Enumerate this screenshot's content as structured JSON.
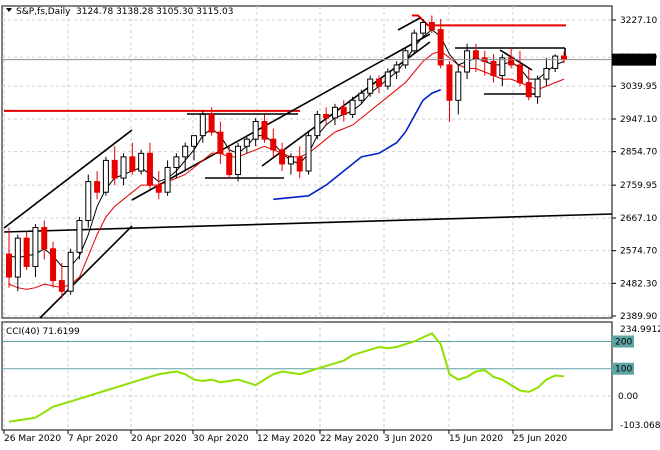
{
  "header": {
    "symbol_line": "S&P,fs,Daily",
    "ohlc": "3124.78 3138.28 3105.30 3115.03"
  },
  "price_badge": "3115.03",
  "indicator": {
    "label": "CCI(40) 71.6199",
    "scale_top": "234.9912",
    "scale_bottom": "-103.0686",
    "level_labels": [
      "200",
      "100",
      "0.00"
    ]
  },
  "colors": {
    "bull": "#000000",
    "bear": "#e60000",
    "ma_fast": "#000000",
    "ma_slow": "#e60000",
    "ma_blue": "#0022cc",
    "cci": "#8fe000",
    "level_line": "#5fa4a4"
  },
  "chart_data": [
    {
      "type": "candlestick",
      "title": "S&P,fs,Daily",
      "y_ticks": [
        "3227.10",
        "3121.90",
        "3039.95",
        "2947.10",
        "2854.70",
        "2759.95",
        "2667.10",
        "2574.70",
        "2482.30",
        "2389.90"
      ],
      "y_tick_values": [
        3227.1,
        3121.9,
        3039.95,
        2947.1,
        2854.7,
        2759.95,
        2667.1,
        2574.7,
        2482.3,
        2389.9
      ],
      "ylim": [
        2389.9,
        3280
      ],
      "x_ticks": [
        "26 Mar 2020",
        "7 Apr 2020",
        "20 Apr 2020",
        "30 Apr 2020",
        "12 May 2020",
        "22 May 2020",
        "3 Jun 2020",
        "15 Jun 2020",
        "25 Jun 2020"
      ],
      "candles": [
        [
          2565,
          2640,
          2470,
          2500
        ],
        [
          2500,
          2620,
          2460,
          2610
        ],
        [
          2610,
          2630,
          2520,
          2530
        ],
        [
          2530,
          2650,
          2500,
          2640
        ],
        [
          2640,
          2660,
          2550,
          2580
        ],
        [
          2580,
          2600,
          2470,
          2490
        ],
        [
          2490,
          2540,
          2440,
          2460
        ],
        [
          2460,
          2580,
          2450,
          2570
        ],
        [
          2570,
          2670,
          2550,
          2660
        ],
        [
          2660,
          2790,
          2640,
          2770
        ],
        [
          2770,
          2800,
          2720,
          2740
        ],
        [
          2740,
          2840,
          2730,
          2830
        ],
        [
          2830,
          2870,
          2760,
          2780
        ],
        [
          2780,
          2850,
          2760,
          2840
        ],
        [
          2840,
          2880,
          2790,
          2800
        ],
        [
          2800,
          2860,
          2790,
          2850
        ],
        [
          2850,
          2880,
          2750,
          2760
        ],
        [
          2760,
          2800,
          2720,
          2740
        ],
        [
          2740,
          2830,
          2730,
          2810
        ],
        [
          2810,
          2850,
          2780,
          2840
        ],
        [
          2840,
          2880,
          2800,
          2870
        ],
        [
          2870,
          2900,
          2830,
          2900
        ],
        [
          2900,
          2970,
          2880,
          2960
        ],
        [
          2960,
          2980,
          2900,
          2910
        ],
        [
          2910,
          2940,
          2820,
          2850
        ],
        [
          2850,
          2870,
          2780,
          2790
        ],
        [
          2790,
          2880,
          2770,
          2870
        ],
        [
          2870,
          2900,
          2850,
          2890
        ],
        [
          2890,
          2950,
          2870,
          2940
        ],
        [
          2940,
          2960,
          2880,
          2890
        ],
        [
          2890,
          2920,
          2840,
          2860
        ],
        [
          2860,
          2880,
          2800,
          2820
        ],
        [
          2820,
          2850,
          2790,
          2840
        ],
        [
          2840,
          2870,
          2780,
          2800
        ],
        [
          2800,
          2910,
          2790,
          2900
        ],
        [
          2900,
          2970,
          2890,
          2960
        ],
        [
          2960,
          2980,
          2930,
          2950
        ],
        [
          2950,
          2990,
          2930,
          2980
        ],
        [
          2980,
          3000,
          2940,
          2960
        ],
        [
          2960,
          3010,
          2950,
          3000
        ],
        [
          3000,
          3030,
          2990,
          3020
        ],
        [
          3020,
          3070,
          3010,
          3060
        ],
        [
          3060,
          3070,
          3020,
          3040
        ],
        [
          3040,
          3090,
          3030,
          3080
        ],
        [
          3080,
          3110,
          3060,
          3100
        ],
        [
          3100,
          3150,
          3090,
          3140
        ],
        [
          3140,
          3200,
          3130,
          3190
        ],
        [
          3190,
          3230,
          3180,
          3220
        ],
        [
          3220,
          3240,
          3190,
          3200
        ],
        [
          3200,
          3230,
          3090,
          3100
        ],
        [
          3100,
          3110,
          2940,
          3000
        ],
        [
          3000,
          3100,
          2960,
          3080
        ],
        [
          3080,
          3160,
          3060,
          3140
        ],
        [
          3140,
          3160,
          3080,
          3120
        ],
        [
          3120,
          3140,
          3070,
          3110
        ],
        [
          3110,
          3130,
          3050,
          3070
        ],
        [
          3070,
          3130,
          3040,
          3120
        ],
        [
          3120,
          3150,
          3090,
          3100
        ],
        [
          3100,
          3140,
          3040,
          3050
        ],
        [
          3050,
          3090,
          3000,
          3010
        ],
        [
          3010,
          3070,
          2990,
          3060
        ],
        [
          3060,
          3120,
          3040,
          3090
        ],
        [
          3090,
          3130,
          3080,
          3125
        ],
        [
          3125,
          3138,
          3105,
          3115
        ]
      ],
      "ma_fast": [
        2560,
        2555,
        2560,
        2565,
        2580,
        2560,
        2530,
        2530,
        2560,
        2620,
        2700,
        2750,
        2780,
        2790,
        2800,
        2810,
        2790,
        2770,
        2780,
        2800,
        2830,
        2860,
        2900,
        2920,
        2900,
        2860,
        2850,
        2870,
        2900,
        2900,
        2880,
        2850,
        2830,
        2820,
        2850,
        2900,
        2930,
        2950,
        2960,
        2970,
        2990,
        3020,
        3040,
        3060,
        3080,
        3110,
        3150,
        3180,
        3200,
        3180,
        3130,
        3100,
        3110,
        3120,
        3110,
        3100,
        3100,
        3110,
        3090,
        3060,
        3060,
        3080,
        3100,
        3110
      ],
      "ma_slow": [
        2480,
        2470,
        2465,
        2470,
        2480,
        2475,
        2470,
        2480,
        2500,
        2560,
        2620,
        2670,
        2700,
        2720,
        2740,
        2760,
        2760,
        2760,
        2770,
        2780,
        2790,
        2810,
        2830,
        2850,
        2850,
        2840,
        2840,
        2850,
        2860,
        2870,
        2860,
        2850,
        2840,
        2840,
        2850,
        2870,
        2890,
        2910,
        2920,
        2930,
        2950,
        2970,
        2990,
        3010,
        3030,
        3050,
        3080,
        3110,
        3130,
        3140,
        3120,
        3100,
        3090,
        3090,
        3080,
        3070,
        3060,
        3060,
        3050,
        3040,
        3030,
        3040,
        3050,
        3060
      ],
      "ma_blue": [
        [
          30,
          2720
        ],
        [
          34,
          2730
        ],
        [
          36,
          2760
        ],
        [
          38,
          2800
        ],
        [
          40,
          2840
        ],
        [
          42,
          2850
        ],
        [
          44,
          2880
        ],
        [
          45,
          2910
        ],
        [
          47,
          3000
        ],
        [
          48,
          3020
        ],
        [
          49,
          3030
        ]
      ],
      "resistance_levels": [
        {
          "value": 2970,
          "color": "#e60000"
        },
        {
          "value": 3210,
          "color": "#e60000"
        }
      ],
      "cci_label": "CCI(40) 71.6199",
      "cci_levels": [
        200,
        100,
        0
      ],
      "cci_ylim": [
        -103.0686,
        234.9912
      ],
      "cci": [
        -95,
        -90,
        -85,
        -80,
        -60,
        -40,
        -30,
        -20,
        -10,
        0,
        10,
        20,
        30,
        40,
        50,
        60,
        70,
        80,
        85,
        90,
        80,
        60,
        55,
        60,
        50,
        55,
        60,
        50,
        40,
        60,
        80,
        90,
        85,
        80,
        90,
        100,
        110,
        120,
        130,
        150,
        160,
        170,
        180,
        175,
        180,
        190,
        200,
        215,
        230,
        190,
        80,
        60,
        70,
        90,
        95,
        70,
        60,
        40,
        20,
        15,
        30,
        60,
        75,
        72
      ]
    }
  ]
}
